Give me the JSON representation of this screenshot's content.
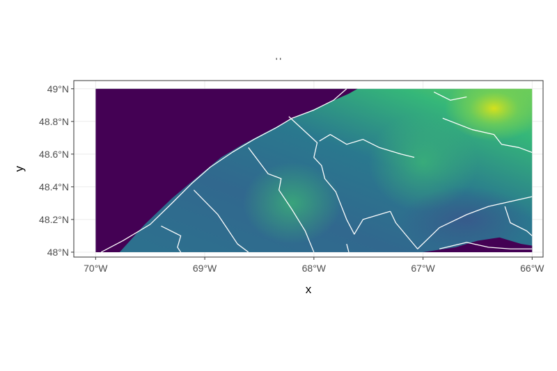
{
  "title": "' '",
  "chart_data": {
    "type": "heatmap",
    "subtype": "raster map with boundary overlay",
    "title": "' '",
    "xlabel": "x",
    "ylabel": "y",
    "x_ticks": [
      {
        "value": -70,
        "label": "70°W"
      },
      {
        "value": -69,
        "label": "69°W"
      },
      {
        "value": -68,
        "label": "68°W"
      },
      {
        "value": -67,
        "label": "67°W"
      },
      {
        "value": -66,
        "label": "66°W"
      }
    ],
    "y_ticks": [
      {
        "value": 48.0,
        "label": "48°N"
      },
      {
        "value": 48.2,
        "label": "48.2°N"
      },
      {
        "value": 48.4,
        "label": "48.4°N"
      },
      {
        "value": 48.6,
        "label": "48.6°N"
      },
      {
        "value": 48.8,
        "label": "48.8°N"
      },
      {
        "value": 49.0,
        "label": "49°N"
      }
    ],
    "xlim": [
      -70.2,
      -65.9
    ],
    "ylim": [
      47.97,
      49.05
    ],
    "raster_extent": {
      "x": [
        -70.0,
        -66.0
      ],
      "y": [
        48.0,
        49.0
      ]
    },
    "colorscale": "viridis",
    "grid": true,
    "legend": "none",
    "colors": {
      "low": "#440154",
      "mid_low": "#3b528b",
      "mid": "#21918c",
      "mid_high": "#5ec962",
      "high": "#fde725",
      "boundary": "#ffffff",
      "panel_border": "#333333",
      "grid": "#ebebeb"
    },
    "coastline": [
      [
        -69.78,
        48.0
      ],
      [
        -69.55,
        48.17
      ],
      [
        -69.3,
        48.33
      ],
      [
        -69.05,
        48.47
      ],
      [
        -68.85,
        48.58
      ],
      [
        -68.65,
        48.66
      ],
      [
        -68.45,
        48.73
      ],
      [
        -68.25,
        48.8
      ],
      [
        -68.05,
        48.86
      ],
      [
        -67.85,
        48.92
      ],
      [
        -67.68,
        48.97
      ],
      [
        -67.6,
        49.0
      ]
    ],
    "boundaries": [
      [
        [
          -69.95,
          48.0
        ],
        [
          -69.75,
          48.07
        ],
        [
          -69.5,
          48.17
        ],
        [
          -69.3,
          48.3
        ],
        [
          -69.12,
          48.42
        ],
        [
          -68.95,
          48.52
        ],
        [
          -68.75,
          48.61
        ],
        [
          -68.55,
          48.69
        ],
        [
          -68.35,
          48.76
        ],
        [
          -68.2,
          48.82
        ],
        [
          -68.0,
          48.87
        ],
        [
          -67.82,
          48.93
        ],
        [
          -67.7,
          49.0
        ]
      ],
      [
        [
          -69.4,
          48.16
        ],
        [
          -69.22,
          48.1
        ],
        [
          -69.25,
          48.03
        ],
        [
          -69.22,
          48.0
        ]
      ],
      [
        [
          -69.1,
          48.38
        ],
        [
          -68.88,
          48.23
        ],
        [
          -68.8,
          48.15
        ],
        [
          -68.7,
          48.05
        ],
        [
          -68.6,
          48.0
        ]
      ],
      [
        [
          -68.6,
          48.64
        ],
        [
          -68.42,
          48.48
        ],
        [
          -68.3,
          48.45
        ],
        [
          -68.32,
          48.38
        ],
        [
          -68.2,
          48.26
        ],
        [
          -68.08,
          48.13
        ],
        [
          -68.0,
          48.0
        ]
      ],
      [
        [
          -68.23,
          48.83
        ],
        [
          -67.97,
          48.67
        ],
        [
          -68.0,
          48.58
        ],
        [
          -67.93,
          48.53
        ],
        [
          -67.9,
          48.45
        ],
        [
          -67.8,
          48.37
        ],
        [
          -67.7,
          48.2
        ],
        [
          -67.63,
          48.11
        ],
        [
          -67.55,
          48.2
        ],
        [
          -67.3,
          48.25
        ]
      ],
      [
        [
          -67.95,
          48.68
        ],
        [
          -67.85,
          48.72
        ],
        [
          -67.7,
          48.66
        ],
        [
          -67.55,
          48.69
        ],
        [
          -67.4,
          48.64
        ],
        [
          -67.2,
          48.6
        ],
        [
          -67.08,
          48.58
        ]
      ],
      [
        [
          -67.3,
          48.25
        ],
        [
          -67.25,
          48.18
        ],
        [
          -67.05,
          48.02
        ],
        [
          -66.85,
          48.15
        ],
        [
          -66.6,
          48.23
        ],
        [
          -66.4,
          48.28
        ],
        [
          -66.0,
          48.34
        ]
      ],
      [
        [
          -66.82,
          48.82
        ],
        [
          -66.55,
          48.75
        ],
        [
          -66.35,
          48.72
        ],
        [
          -66.28,
          48.66
        ],
        [
          -66.12,
          48.64
        ],
        [
          -66.0,
          48.61
        ]
      ],
      [
        [
          -66.25,
          48.28
        ],
        [
          -66.2,
          48.18
        ],
        [
          -66.05,
          48.13
        ],
        [
          -66.0,
          48.1
        ]
      ],
      [
        [
          -66.9,
          48.98
        ],
        [
          -66.75,
          48.93
        ],
        [
          -66.6,
          48.95
        ]
      ],
      [
        [
          -67.7,
          48.05
        ],
        [
          -67.68,
          48.0
        ]
      ],
      [
        [
          -66.85,
          48.02
        ],
        [
          -66.6,
          48.06
        ],
        [
          -66.4,
          48.03
        ],
        [
          -66.2,
          48.02
        ],
        [
          -66.0,
          48.02
        ]
      ]
    ]
  }
}
